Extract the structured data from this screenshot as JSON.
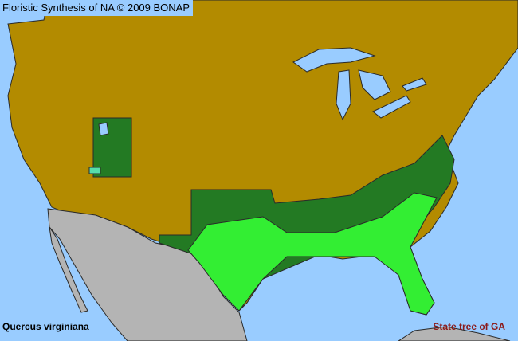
{
  "header": {
    "title": "Floristic Synthesis of NA © 2009 BONAP"
  },
  "footer": {
    "species": "Quercus virginiana",
    "state_tree": "State tree of GA"
  },
  "colors": {
    "ocean": "#99ccff",
    "land_absent": "#b38b00",
    "mexico": "#b4b4b4",
    "state_present": "#237a23",
    "county_present": "#33ee33",
    "county_rare": "#55ddaa",
    "borders": "#2a2a2a",
    "state_tree_label": "#8b1a1a"
  }
}
